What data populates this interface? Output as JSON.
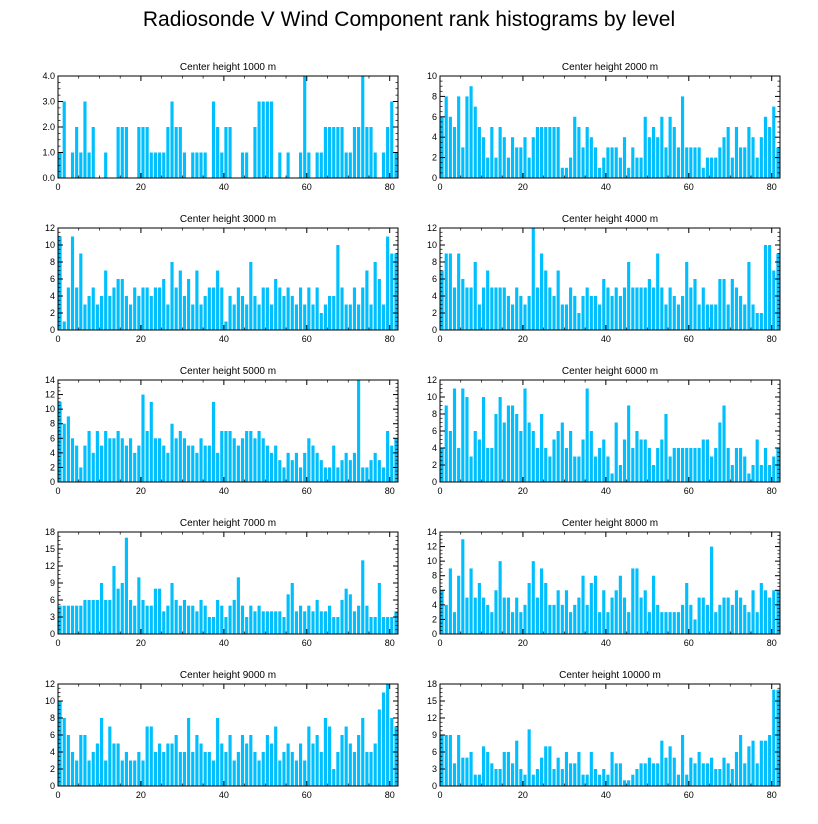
{
  "title": "Radiosonde V Wind Component rank histograms by level",
  "bar_color": "#00bfff",
  "chart_data": [
    {
      "type": "bar",
      "title": "Center height 1000 m",
      "xlabel": "",
      "ylabel": "",
      "xlim": [
        0,
        82
      ],
      "ylim": [
        0,
        4
      ],
      "xticks": [
        "0",
        "20",
        "40",
        "60",
        "80"
      ],
      "yticks": [
        "0.0",
        "1.0",
        "2.0",
        "3.0",
        "4.0"
      ],
      "values": [
        1,
        3,
        0,
        1,
        2,
        1,
        3,
        1,
        2,
        0,
        0,
        1,
        0,
        0,
        2,
        2,
        2,
        0,
        0,
        2,
        2,
        2,
        1,
        1,
        1,
        1,
        2,
        3,
        2,
        2,
        1,
        0,
        1,
        1,
        1,
        1,
        0,
        3,
        2,
        1,
        2,
        2,
        0,
        0,
        1,
        1,
        0,
        2,
        3,
        3,
        3,
        3,
        0,
        1,
        0,
        1,
        0,
        0,
        1,
        4,
        1,
        0,
        1,
        1,
        2,
        2,
        2,
        2,
        2,
        1,
        1,
        2,
        2,
        4,
        2,
        2,
        1,
        0,
        1,
        2,
        3,
        1
      ]
    },
    {
      "type": "bar",
      "title": "Center height 2000 m",
      "xlabel": "",
      "ylabel": "",
      "xlim": [
        0,
        82
      ],
      "ylim": [
        0,
        10
      ],
      "xticks": [
        "0",
        "20",
        "40",
        "60",
        "80"
      ],
      "yticks": [
        "0",
        "2",
        "4",
        "6",
        "8",
        "10"
      ],
      "values": [
        6,
        8,
        6,
        5,
        8,
        3,
        8,
        9,
        7,
        5,
        4,
        2,
        5,
        2,
        5,
        4,
        2,
        4,
        3,
        3,
        4,
        2,
        4,
        5,
        5,
        5,
        5,
        5,
        5,
        1,
        1,
        2,
        6,
        5,
        3,
        5,
        4,
        3,
        1,
        2,
        3,
        3,
        3,
        2,
        4,
        1,
        3,
        2,
        2,
        6,
        4,
        5,
        4,
        6,
        3,
        6,
        5,
        3,
        8,
        3,
        3,
        3,
        3,
        1,
        2,
        2,
        2,
        3,
        4,
        5,
        2,
        5,
        3,
        3,
        5,
        4,
        2,
        4,
        6,
        5,
        7,
        3
      ]
    },
    {
      "type": "bar",
      "title": "Center height 3000 m",
      "xlabel": "",
      "ylabel": "",
      "xlim": [
        0,
        82
      ],
      "ylim": [
        0,
        12
      ],
      "xticks": [
        "0",
        "20",
        "40",
        "60",
        "80"
      ],
      "yticks": [
        "0",
        "2",
        "4",
        "6",
        "8",
        "10",
        "12"
      ],
      "values": [
        11,
        1,
        5,
        11,
        5,
        9,
        3,
        4,
        5,
        3,
        4,
        7,
        4,
        5,
        6,
        6,
        4,
        3,
        5,
        4,
        5,
        5,
        4,
        5,
        5,
        6,
        3,
        8,
        5,
        7,
        4,
        6,
        3,
        7,
        3,
        4,
        5,
        5,
        7,
        5,
        1,
        4,
        3,
        5,
        4,
        3,
        8,
        4,
        3,
        5,
        5,
        3,
        6,
        5,
        4,
        5,
        4,
        3,
        5,
        3,
        5,
        3,
        5,
        2,
        3,
        4,
        4,
        10,
        5,
        3,
        3,
        5,
        3,
        5,
        7,
        3,
        8,
        6,
        3,
        11,
        9,
        9
      ]
    },
    {
      "type": "bar",
      "title": "Center height 4000 m",
      "xlabel": "",
      "ylabel": "",
      "xlim": [
        0,
        82
      ],
      "ylim": [
        0,
        12
      ],
      "xticks": [
        "0",
        "20",
        "40",
        "60",
        "80"
      ],
      "yticks": [
        "0",
        "2",
        "4",
        "6",
        "8",
        "10",
        "12"
      ],
      "values": [
        7,
        9,
        9,
        5,
        9,
        6,
        5,
        5,
        8,
        3,
        5,
        7,
        5,
        5,
        5,
        5,
        4,
        3,
        5,
        4,
        3,
        4,
        12,
        5,
        9,
        7,
        5,
        4,
        7,
        3,
        3,
        5,
        4,
        2,
        4,
        5,
        4,
        4,
        3,
        6,
        5,
        4,
        5,
        4,
        5,
        8,
        5,
        5,
        5,
        5,
        6,
        5,
        9,
        5,
        3,
        5,
        4,
        3,
        4,
        8,
        5,
        6,
        3,
        5,
        3,
        3,
        3,
        6,
        6,
        3,
        6,
        5,
        4,
        3,
        8,
        3,
        2,
        2,
        10,
        10,
        7,
        9
      ]
    },
    {
      "type": "bar",
      "title": "Center height 5000 m",
      "xlabel": "",
      "ylabel": "",
      "xlim": [
        0,
        82
      ],
      "ylim": [
        0,
        14
      ],
      "xticks": [
        "0",
        "20",
        "40",
        "60",
        "80"
      ],
      "yticks": [
        "0",
        "2",
        "4",
        "6",
        "8",
        "10",
        "12",
        "14"
      ],
      "values": [
        11,
        8,
        9,
        6,
        5,
        2,
        5,
        7,
        4,
        7,
        5,
        7,
        6,
        6,
        7,
        6,
        5,
        6,
        4,
        5,
        12,
        7,
        11,
        6,
        6,
        5,
        4,
        8,
        6,
        7,
        6,
        5,
        5,
        4,
        6,
        5,
        5,
        11,
        4,
        7,
        7,
        7,
        6,
        5,
        6,
        7,
        7,
        6,
        7,
        6,
        5,
        4,
        5,
        3,
        2,
        4,
        3,
        4,
        2,
        4,
        6,
        5,
        4,
        3,
        2,
        2,
        5,
        2,
        3,
        4,
        3,
        4,
        14,
        2,
        2,
        3,
        4,
        3,
        2,
        7,
        5,
        6
      ]
    },
    {
      "type": "bar",
      "title": "Center height 6000 m",
      "xlabel": "",
      "ylabel": "",
      "xlim": [
        0,
        82
      ],
      "ylim": [
        0,
        12
      ],
      "xticks": [
        "0",
        "20",
        "40",
        "60",
        "80"
      ],
      "yticks": [
        "0",
        "2",
        "4",
        "6",
        "8",
        "10",
        "12"
      ],
      "values": [
        4,
        9,
        6,
        11,
        4,
        11,
        10,
        3,
        6,
        5,
        10,
        4,
        4,
        8,
        10,
        7,
        9,
        9,
        8,
        6,
        11,
        7,
        6,
        4,
        8,
        4,
        3,
        5,
        6,
        7,
        4,
        6,
        3,
        3,
        5,
        11,
        6,
        3,
        4,
        5,
        3,
        1,
        7,
        2,
        5,
        9,
        4,
        6,
        5,
        5,
        4,
        2,
        4,
        5,
        8,
        3,
        4,
        4,
        4,
        4,
        4,
        4,
        4,
        5,
        5,
        3,
        4,
        7,
        9,
        4,
        2,
        4,
        4,
        3,
        1,
        2,
        5,
        2,
        4,
        2,
        3,
        4
      ]
    },
    {
      "type": "bar",
      "title": "Center height 7000 m",
      "xlabel": "",
      "ylabel": "",
      "xlim": [
        0,
        82
      ],
      "ylim": [
        0,
        18
      ],
      "xticks": [
        "0",
        "20",
        "40",
        "60",
        "80"
      ],
      "yticks": [
        "0",
        "3",
        "6",
        "9",
        "12",
        "15",
        "18"
      ],
      "values": [
        5,
        5,
        5,
        5,
        5,
        5,
        6,
        6,
        6,
        6,
        9,
        6,
        6,
        12,
        8,
        9,
        17,
        6,
        5,
        10,
        6,
        5,
        5,
        8,
        8,
        4,
        5,
        9,
        6,
        5,
        6,
        5,
        5,
        4,
        6,
        5,
        3,
        3,
        6,
        5,
        3,
        5,
        6,
        10,
        5,
        3,
        5,
        4,
        5,
        4,
        4,
        4,
        4,
        4,
        3,
        7,
        9,
        4,
        5,
        4,
        5,
        4,
        6,
        4,
        4,
        5,
        3,
        3,
        6,
        8,
        7,
        4,
        5,
        13,
        5,
        3,
        3,
        9,
        3,
        3,
        3,
        4
      ]
    },
    {
      "type": "bar",
      "title": "Center height 8000 m",
      "xlabel": "",
      "ylabel": "",
      "xlim": [
        0,
        82
      ],
      "ylim": [
        0,
        14
      ],
      "xticks": [
        "0",
        "20",
        "40",
        "60",
        "80"
      ],
      "yticks": [
        "0",
        "2",
        "4",
        "6",
        "8",
        "10",
        "12",
        "14"
      ],
      "values": [
        6,
        4,
        9,
        3,
        8,
        13,
        5,
        9,
        5,
        7,
        5,
        4,
        3,
        6,
        10,
        5,
        5,
        3,
        5,
        3,
        4,
        7,
        10,
        5,
        9,
        7,
        4,
        4,
        6,
        4,
        6,
        3,
        4,
        5,
        8,
        4,
        7,
        8,
        3,
        6,
        3,
        5,
        6,
        8,
        5,
        3,
        9,
        9,
        5,
        6,
        3,
        8,
        4,
        3,
        3,
        3,
        3,
        3,
        4,
        7,
        4,
        2,
        5,
        5,
        4,
        12,
        3,
        4,
        5,
        5,
        4,
        6,
        5,
        4,
        3,
        6,
        3,
        7,
        6,
        5,
        6,
        6
      ]
    },
    {
      "type": "bar",
      "title": "Center height 9000 m",
      "xlabel": "",
      "ylabel": "",
      "xlim": [
        0,
        82
      ],
      "ylim": [
        0,
        12
      ],
      "xticks": [
        "0",
        "20",
        "40",
        "60",
        "80"
      ],
      "yticks": [
        "0",
        "2",
        "4",
        "6",
        "8",
        "10",
        "12"
      ],
      "values": [
        10,
        8,
        6,
        4,
        3,
        6,
        6,
        3,
        4,
        5,
        8,
        3,
        7,
        5,
        5,
        3,
        4,
        3,
        3,
        4,
        3,
        7,
        7,
        4,
        5,
        4,
        5,
        5,
        6,
        4,
        4,
        8,
        4,
        6,
        5,
        4,
        4,
        3,
        8,
        5,
        4,
        6,
        3,
        4,
        6,
        5,
        6,
        4,
        3,
        4,
        6,
        5,
        7,
        3,
        4,
        5,
        4,
        3,
        5,
        3,
        7,
        5,
        6,
        4,
        8,
        7,
        2,
        4,
        6,
        7,
        5,
        4,
        6,
        8,
        4,
        4,
        5,
        9,
        11,
        12,
        8,
        7
      ]
    },
    {
      "type": "bar",
      "title": "Center height 10000 m",
      "xlabel": "",
      "ylabel": "",
      "xlim": [
        0,
        82
      ],
      "ylim": [
        0,
        18
      ],
      "xticks": [
        "0",
        "20",
        "40",
        "60",
        "80"
      ],
      "yticks": [
        "0",
        "3",
        "6",
        "9",
        "12",
        "15",
        "18"
      ],
      "values": [
        9,
        9,
        9,
        4,
        9,
        5,
        5,
        6,
        2,
        2,
        7,
        6,
        4,
        3,
        3,
        6,
        6,
        4,
        8,
        3,
        2,
        10,
        2,
        3,
        5,
        7,
        7,
        3,
        5,
        3,
        6,
        4,
        4,
        6,
        2,
        2,
        6,
        3,
        2,
        3,
        2,
        6,
        4,
        4,
        1,
        1,
        2,
        3,
        4,
        4,
        5,
        4,
        4,
        8,
        5,
        7,
        5,
        2,
        9,
        2,
        5,
        4,
        6,
        4,
        4,
        5,
        3,
        3,
        5,
        4,
        3,
        6,
        9,
        4,
        7,
        8,
        4,
        8,
        8,
        9,
        17,
        17
      ]
    }
  ]
}
